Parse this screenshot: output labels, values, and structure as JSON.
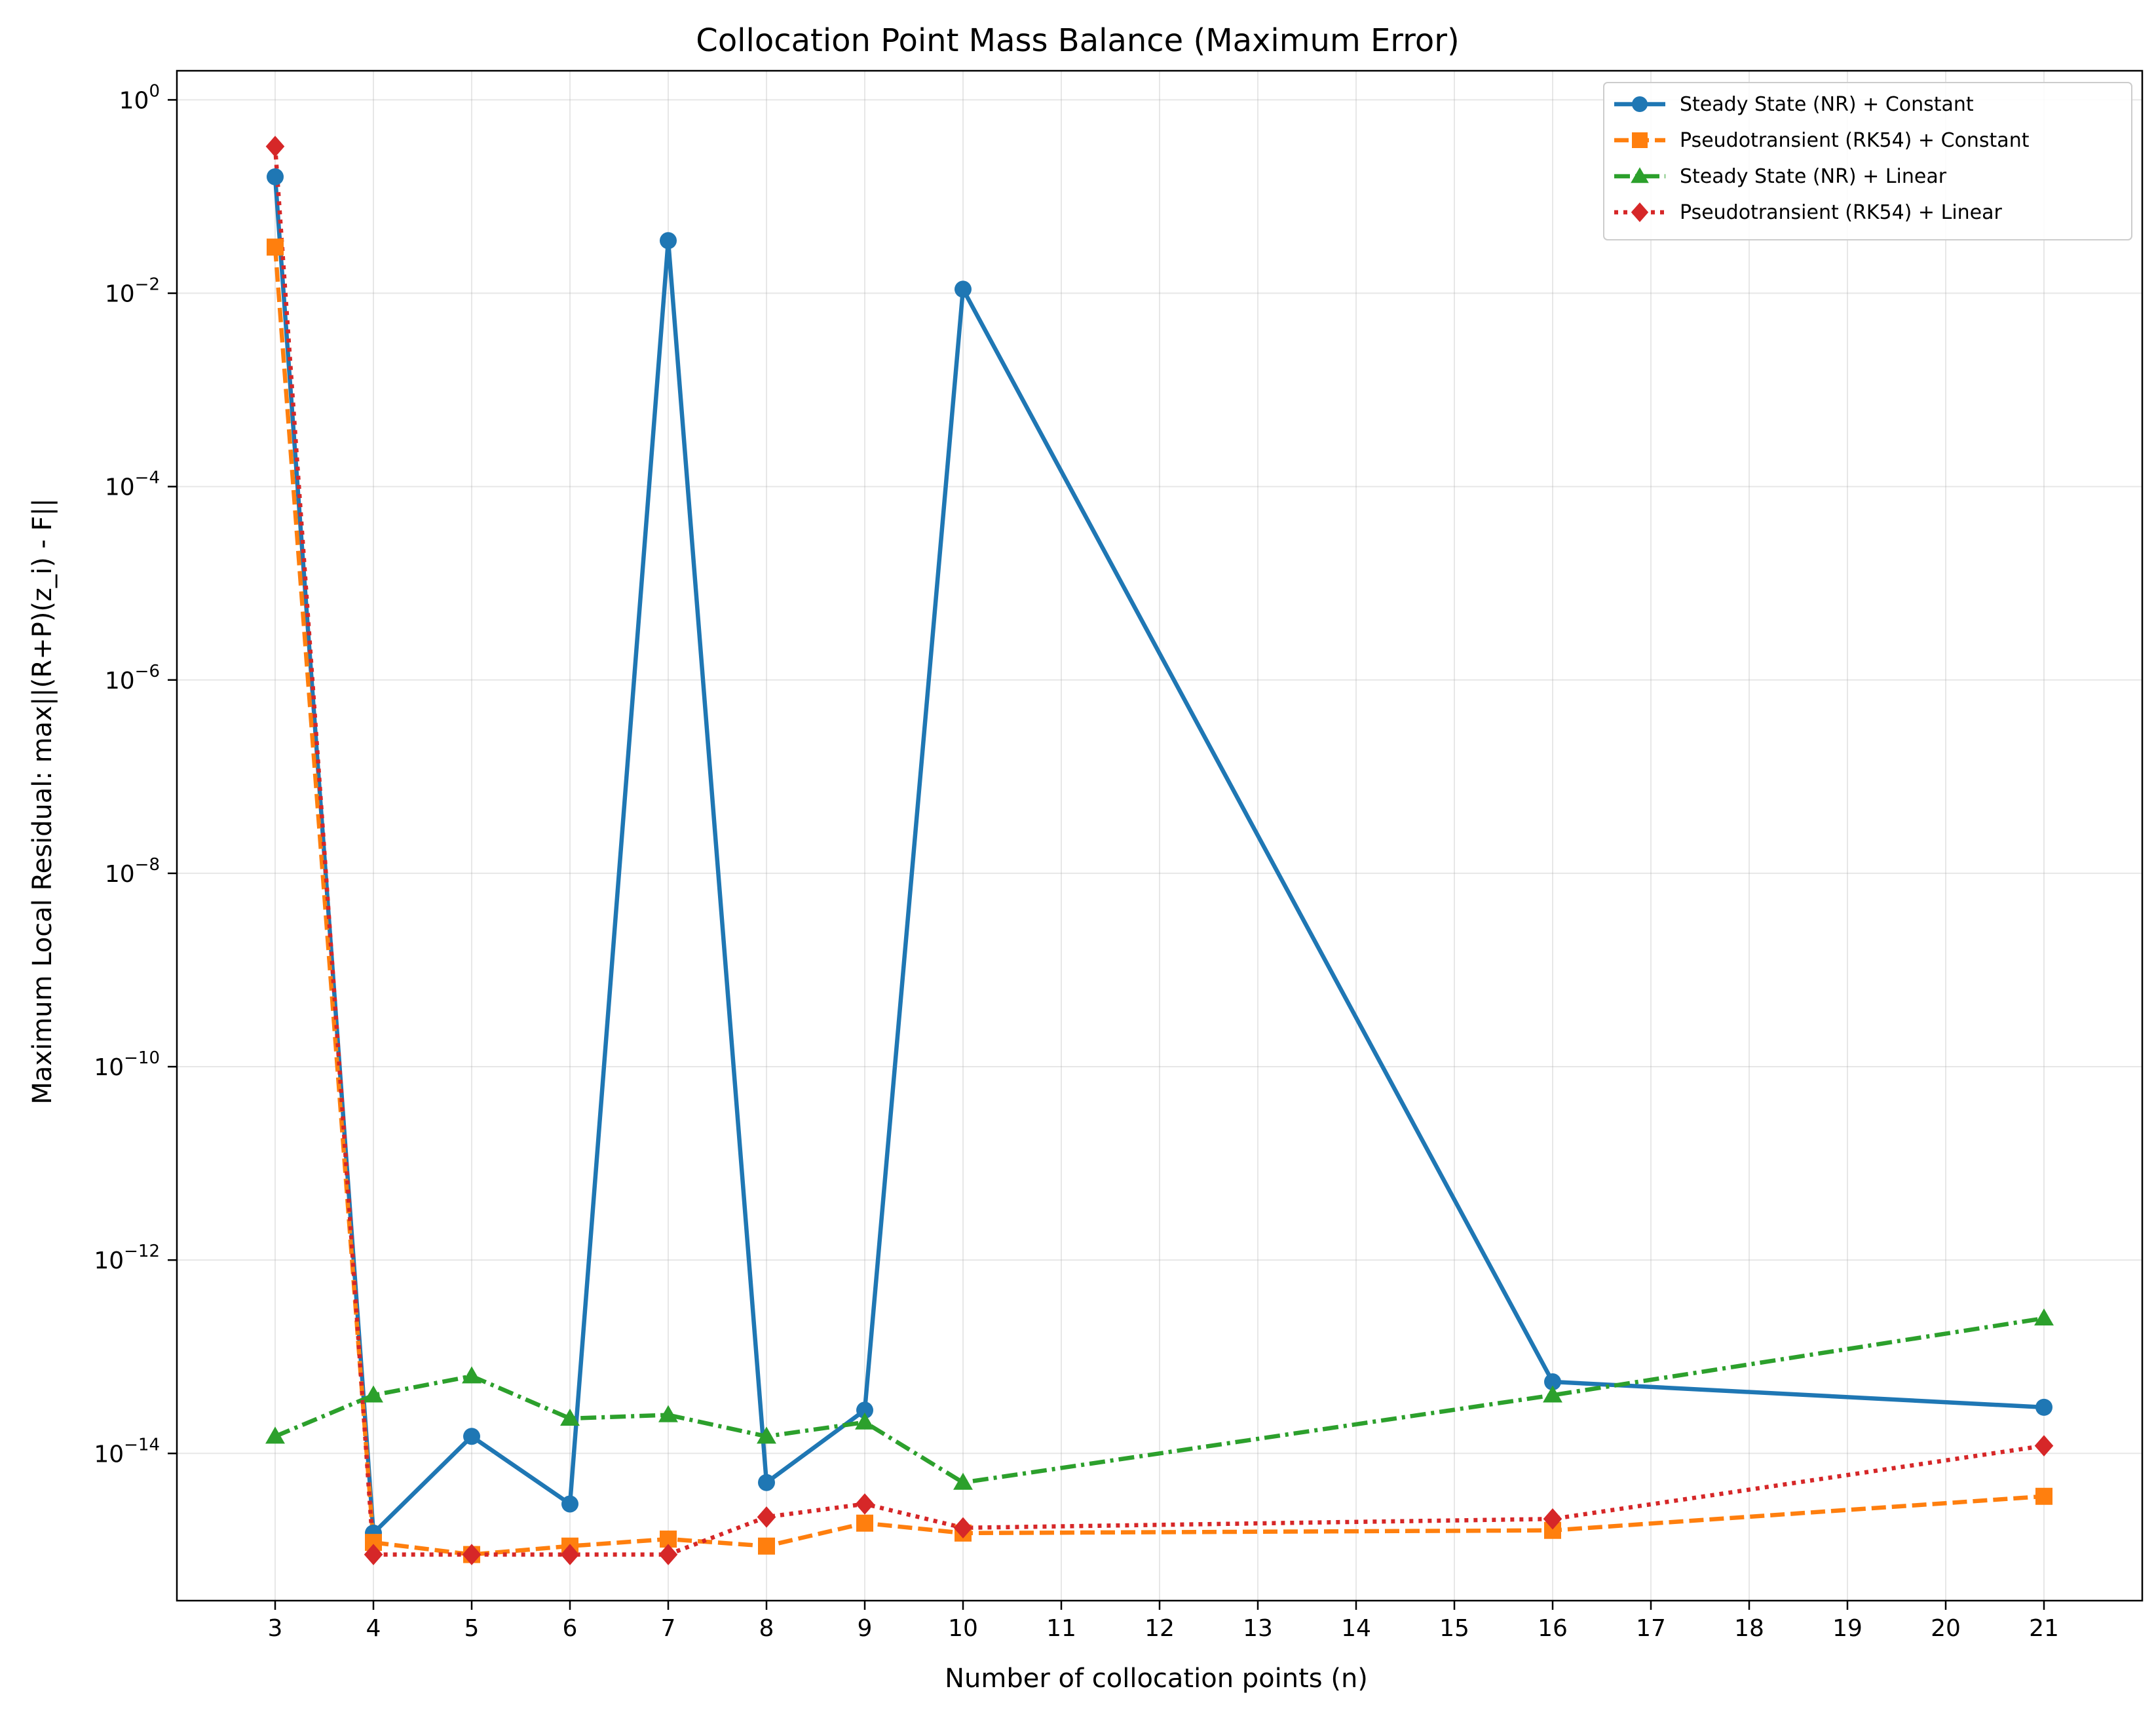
{
  "chart_data": {
    "type": "line",
    "title": "Collocation Point Mass Balance (Maximum Error)",
    "xlabel": "Number of collocation points (n)",
    "ylabel": "Maximum Local Residual: max||(R+P)(z_i) - F||",
    "yscale": "log",
    "xlim": [
      2,
      22
    ],
    "ylim": [
      3e-16,
      2
    ],
    "grid": true,
    "legend_position": "top-right",
    "x_ticks": [
      "3",
      "4",
      "5",
      "6",
      "7",
      "8",
      "9",
      "10",
      "11",
      "12",
      "13",
      "14",
      "15",
      "16",
      "17",
      "18",
      "19",
      "20",
      "21"
    ],
    "y_ticks": [
      {
        "value": 1.0,
        "base": "10",
        "exp": "0"
      },
      {
        "value": 0.01,
        "base": "10",
        "exp": "−2"
      },
      {
        "value": 0.0001,
        "base": "10",
        "exp": "−4"
      },
      {
        "value": 1e-06,
        "base": "10",
        "exp": "−6"
      },
      {
        "value": 1e-08,
        "base": "10",
        "exp": "−8"
      },
      {
        "value": 1e-10,
        "base": "10",
        "exp": "−10"
      },
      {
        "value": 1e-12,
        "base": "10",
        "exp": "−12"
      },
      {
        "value": 1e-14,
        "base": "10",
        "exp": "−14"
      }
    ],
    "x": [
      3,
      4,
      5,
      6,
      7,
      8,
      9,
      10,
      16,
      21
    ],
    "series": [
      {
        "name": "Steady State (NR) + Constant",
        "color": "#1f77b4",
        "linestyle": "solid",
        "marker": "circle",
        "values": [
          0.16,
          1.5e-15,
          1.5e-14,
          3e-15,
          0.035,
          5e-15,
          2.8e-14,
          0.011,
          5.5e-14,
          3e-14
        ]
      },
      {
        "name": "Pseudotransient (RK54) + Constant",
        "color": "#ff7f0e",
        "linestyle": "dashed",
        "marker": "square",
        "values": [
          0.03,
          1.2e-15,
          9e-16,
          1.1e-15,
          1.3e-15,
          1.1e-15,
          1.9e-15,
          1.5e-15,
          1.6e-15,
          3.6e-15
        ]
      },
      {
        "name": "Steady State (NR) + Linear",
        "color": "#2ca02c",
        "linestyle": "dashdot",
        "marker": "triangle",
        "values": [
          1.5e-14,
          4e-14,
          6.3e-14,
          2.3e-14,
          2.5e-14,
          1.5e-14,
          2.1e-14,
          5e-15,
          4e-14,
          2.5e-13
        ]
      },
      {
        "name": "Pseudotransient (RK54) + Linear",
        "color": "#d62728",
        "linestyle": "dotted",
        "marker": "diamond",
        "values": [
          0.33,
          9e-16,
          9e-16,
          9e-16,
          9e-16,
          2.2e-15,
          3e-15,
          1.7e-15,
          2.1e-15,
          1.2e-14
        ]
      }
    ]
  }
}
